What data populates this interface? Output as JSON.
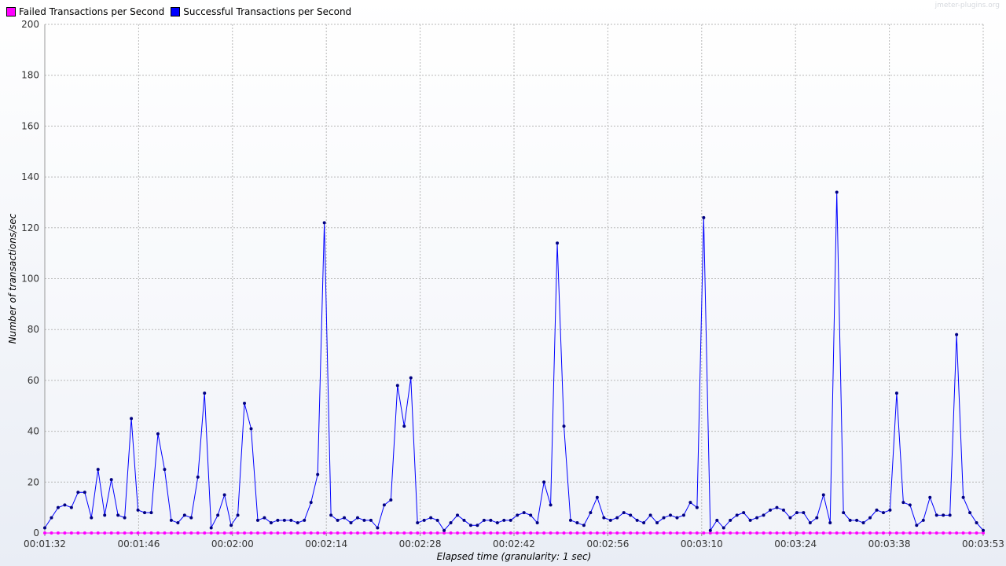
{
  "watermark": "jmeter-plugins.org",
  "chart_data": {
    "type": "line",
    "xlabel": "Elapsed time (granularity: 1 sec)",
    "ylabel": "Number of transactions/sec",
    "ylim": [
      0,
      200
    ],
    "yticks": [
      0,
      20,
      40,
      60,
      80,
      100,
      120,
      140,
      160,
      180,
      200
    ],
    "xrange_seconds": [
      92,
      233
    ],
    "xticks": [
      "00:01:32",
      "00:01:46",
      "00:02:00",
      "00:02:14",
      "00:02:28",
      "00:02:42",
      "00:02:56",
      "00:03:10",
      "00:03:24",
      "00:03:38",
      "00:03:53"
    ],
    "grid": true,
    "legend_position": "top-left",
    "series": [
      {
        "name": "Failed Transactions per Second",
        "color": "#ff00ff",
        "values": [
          0,
          0,
          0,
          0,
          0,
          0,
          0,
          0,
          0,
          0,
          0,
          0,
          0,
          0,
          0,
          0,
          0,
          0,
          0,
          0,
          0,
          0,
          0,
          0,
          0,
          0,
          0,
          0,
          0,
          0,
          0,
          0,
          0,
          0,
          0,
          0,
          0,
          0,
          0,
          0,
          0,
          0,
          0,
          0,
          0,
          0,
          0,
          0,
          0,
          0,
          0,
          0,
          0,
          0,
          0,
          0,
          0,
          0,
          0,
          0,
          0,
          0,
          0,
          0,
          0,
          0,
          0,
          0,
          0,
          0,
          0,
          0,
          0,
          0,
          0,
          0,
          0,
          0,
          0,
          0,
          0,
          0,
          0,
          0,
          0,
          0,
          0,
          0,
          0,
          0,
          0,
          0,
          0,
          0,
          0,
          0,
          0,
          0,
          0,
          0,
          0,
          0,
          0,
          0,
          0,
          0,
          0,
          0,
          0,
          0,
          0,
          0,
          0,
          0,
          0,
          0,
          0,
          0,
          0,
          0,
          0,
          0,
          0,
          0,
          0,
          0,
          0,
          0,
          0,
          0,
          0,
          0,
          0,
          0,
          0,
          0,
          0,
          0,
          0,
          0,
          0,
          0
        ]
      },
      {
        "name": "Successful Transactions per Second",
        "color": "#0000ff",
        "values": [
          2,
          6,
          10,
          11,
          10,
          16,
          16,
          6,
          25,
          7,
          21,
          7,
          6,
          45,
          9,
          8,
          8,
          39,
          25,
          5,
          4,
          7,
          6,
          22,
          55,
          2,
          7,
          15,
          3,
          7,
          51,
          41,
          5,
          6,
          4,
          5,
          5,
          5,
          4,
          5,
          12,
          23,
          122,
          7,
          5,
          6,
          4,
          6,
          5,
          5,
          2,
          11,
          13,
          58,
          42,
          61,
          4,
          5,
          6,
          5,
          1,
          4,
          7,
          5,
          3,
          3,
          5,
          5,
          4,
          5,
          5,
          7,
          8,
          7,
          4,
          20,
          11,
          114,
          42,
          5,
          4,
          3,
          8,
          14,
          6,
          5,
          6,
          8,
          7,
          5,
          4,
          7,
          4,
          6,
          7,
          6,
          7,
          12,
          10,
          124,
          1,
          5,
          2,
          5,
          7,
          8,
          5,
          6,
          7,
          9,
          10,
          9,
          6,
          8,
          8,
          4,
          6,
          15,
          4,
          134,
          8,
          5,
          5,
          4,
          6,
          9,
          8,
          9,
          55,
          12,
          11,
          3,
          5,
          14,
          7,
          7,
          7,
          78,
          14,
          8,
          4,
          1
        ]
      }
    ]
  }
}
